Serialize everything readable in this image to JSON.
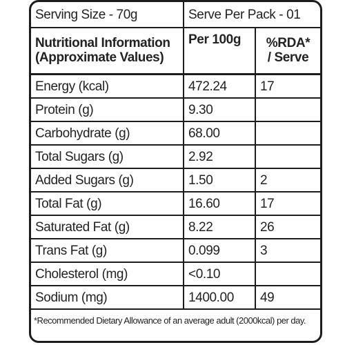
{
  "serving": {
    "size": "Serving Size - 70g",
    "per_pack": "Serve Per Pack - 01"
  },
  "header": {
    "col1_line1": "Nutritional Information",
    "col1_line2": "(Approximate Values)",
    "col2": "Per 100g",
    "col3_line1": "%RDA*",
    "col3_line2": "/ Serve"
  },
  "rows": [
    {
      "nutrient": "Energy (kcal)",
      "per100": "472.24",
      "rda": "17"
    },
    {
      "nutrient": "Protein (g)",
      "per100": "9.30",
      "rda": ""
    },
    {
      "nutrient": "Carbohydrate (g)",
      "per100": "68.00",
      "rda": ""
    },
    {
      "nutrient": "Total Sugars (g)",
      "per100": "2.92",
      "rda": ""
    },
    {
      "nutrient": "Added Sugars (g)",
      "per100": "1.50",
      "rda": "2"
    },
    {
      "nutrient": "Total Fat (g)",
      "per100": "16.60",
      "rda": "17"
    },
    {
      "nutrient": "Saturated Fat (g)",
      "per100": "8.22",
      "rda": "26"
    },
    {
      "nutrient": "Trans Fat (g)",
      "per100": "0.099",
      "rda": "3"
    },
    {
      "nutrient": "Cholesterol (mg)",
      "per100": "<0.10",
      "rda": ""
    },
    {
      "nutrient": "Sodium (mg)",
      "per100": "1400.00",
      "rda": "49"
    }
  ],
  "footnote": "*Recommended Dietary Allowance of an average adult (2000kcal) per day."
}
